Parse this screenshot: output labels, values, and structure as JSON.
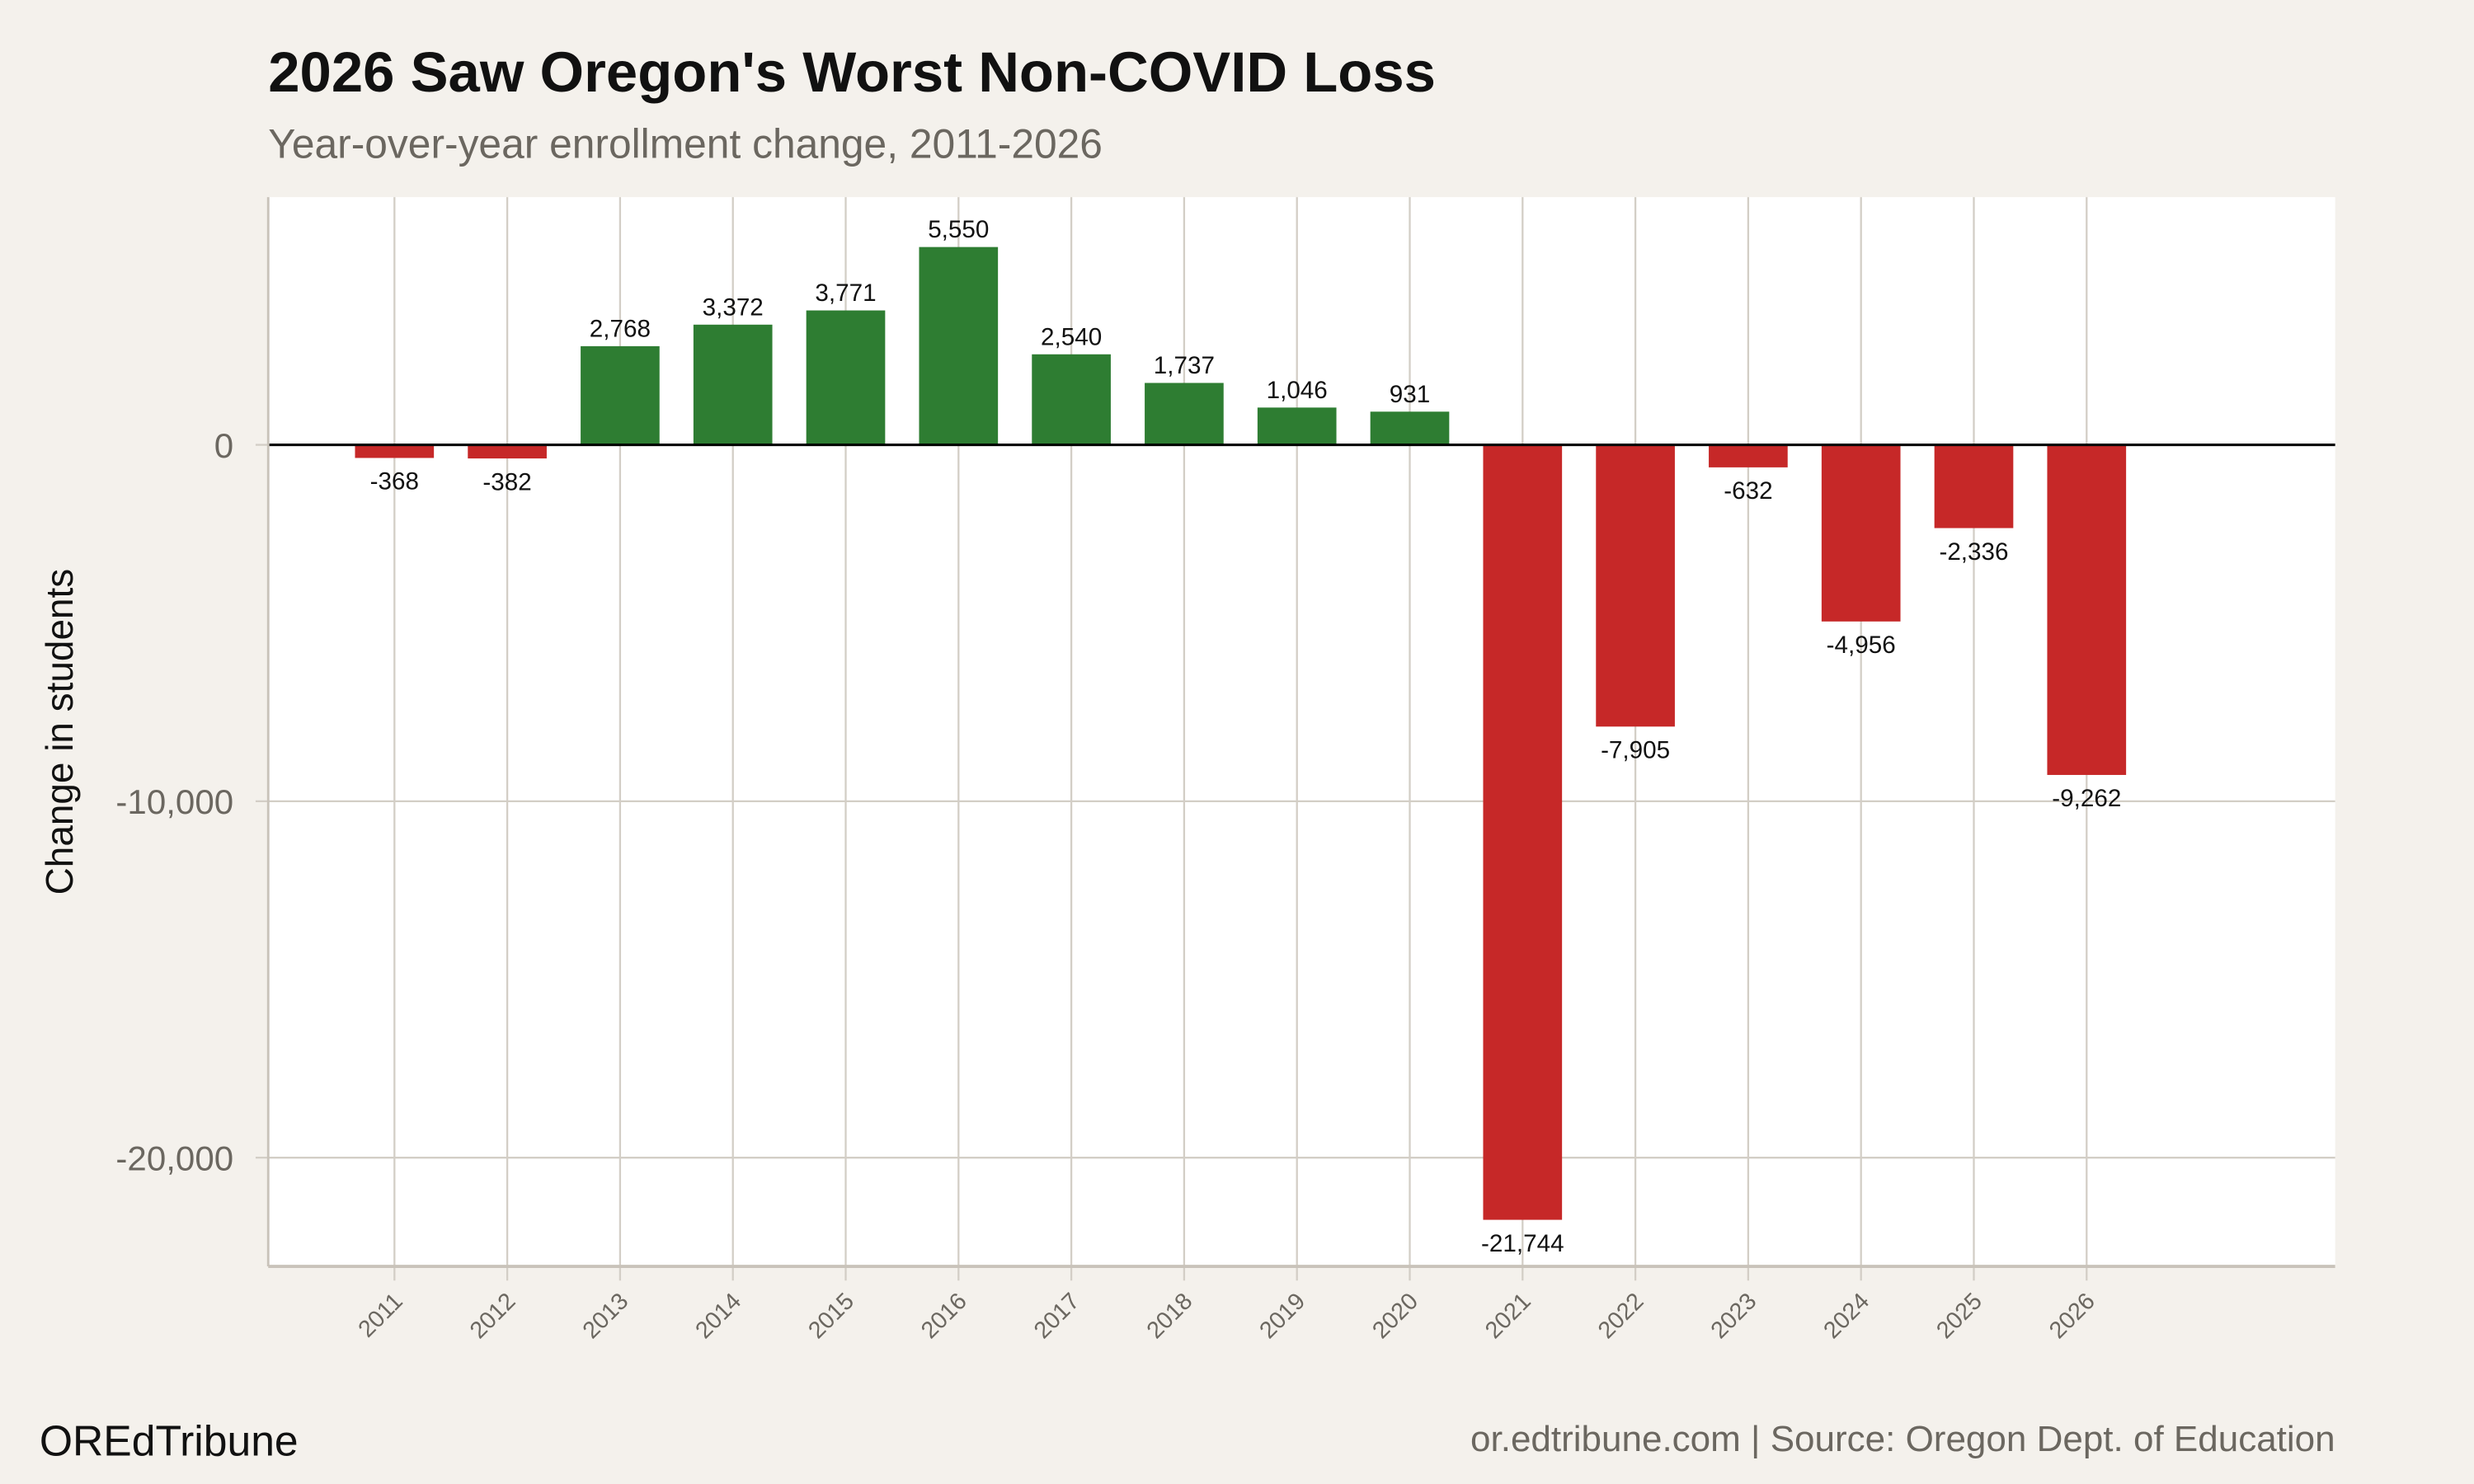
{
  "header": {
    "title": "2026 Saw Oregon's Worst Non-COVID Loss",
    "subtitle": "Year-over-year enrollment change, 2011-2026"
  },
  "footer": {
    "brand": "OREdTribune",
    "source": "or.edtribune.com | Source: Oregon Dept. of Education"
  },
  "colors": {
    "background": "#f4f1ec",
    "plot_background": "#ffffff",
    "positive": "#2e7d32",
    "negative": "#c62828",
    "grid": "#d3cec6",
    "zero_line": "#000000"
  },
  "chart_data": {
    "type": "bar",
    "title": "2026 Saw Oregon's Worst Non-COVID Loss",
    "subtitle": "Year-over-year enrollment change, 2011-2026",
    "xlabel": "",
    "ylabel": "Change in students",
    "categories": [
      "2011",
      "2012",
      "2013",
      "2014",
      "2015",
      "2016",
      "2017",
      "2018",
      "2019",
      "2020",
      "2021",
      "2022",
      "2023",
      "2024",
      "2025",
      "2026"
    ],
    "values": [
      -368,
      -382,
      2768,
      3372,
      3771,
      5550,
      2540,
      1737,
      1046,
      931,
      -21744,
      -7905,
      -632,
      -4956,
      -2336,
      -9262
    ],
    "data_labels": [
      "-368",
      "-382",
      "2,768",
      "3,372",
      "3,771",
      "5,550",
      "2,540",
      "1,737",
      "1,046",
      "931",
      "-21,744",
      "-7,905",
      "-632",
      "-4,956",
      "-2,336",
      "-9,262"
    ],
    "y_ticks": [
      0,
      -10000,
      -20000
    ],
    "y_tick_labels": [
      "0",
      "-10,000",
      "-20,000"
    ],
    "ylim": [
      -23050,
      6950
    ],
    "grid": true,
    "legend": "none"
  }
}
